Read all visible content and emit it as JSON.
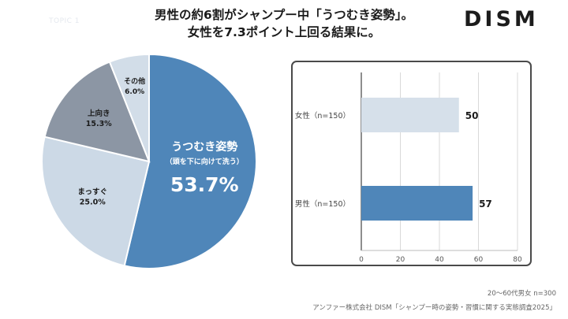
{
  "header": {
    "topic_tag": "TOPIC 1",
    "headline_line1": "男性の約6割がシャンプー中「うつむき姿勢」。",
    "headline_line2": "女性を7.3ポイント上回る結果に。",
    "logo": "DISM"
  },
  "colors": {
    "accent_blue": "#4f86b9",
    "light_blue": "#ccd9e6",
    "slate": "#8c96a4",
    "pale": "#d2dde8",
    "background": "#ffffff"
  },
  "chart_data": [
    {
      "type": "pie",
      "categories": [
        "うつむき姿勢",
        "まっすぐ",
        "上向き",
        "その他"
      ],
      "values": [
        53.7,
        25.0,
        15.3,
        6.0
      ],
      "labels": [
        "53.7%",
        "25.0%",
        "15.3%",
        "6.0%"
      ],
      "highlight_note": "（頭を下に向けて洗う）",
      "colors": [
        "#4f86b9",
        "#ccd9e6",
        "#8c96a4",
        "#d2dde8"
      ]
    },
    {
      "type": "bar",
      "orientation": "horizontal",
      "categories": [
        "女性（n=150）",
        "男性（n=150）"
      ],
      "values": [
        50,
        57
      ],
      "value_labels": [
        "50",
        "57"
      ],
      "xlim": [
        0,
        80
      ],
      "xticks": [
        "0",
        "20",
        "40",
        "60",
        "80"
      ],
      "colors": [
        "#d6e0ea",
        "#4f86b9"
      ],
      "grid": true
    }
  ],
  "footer": {
    "sample_note": "20〜60代男女 n=300",
    "source": "アンファー株式会社 DISM「シャンプー時の姿勢・習慣に関する実態調査2025」"
  }
}
